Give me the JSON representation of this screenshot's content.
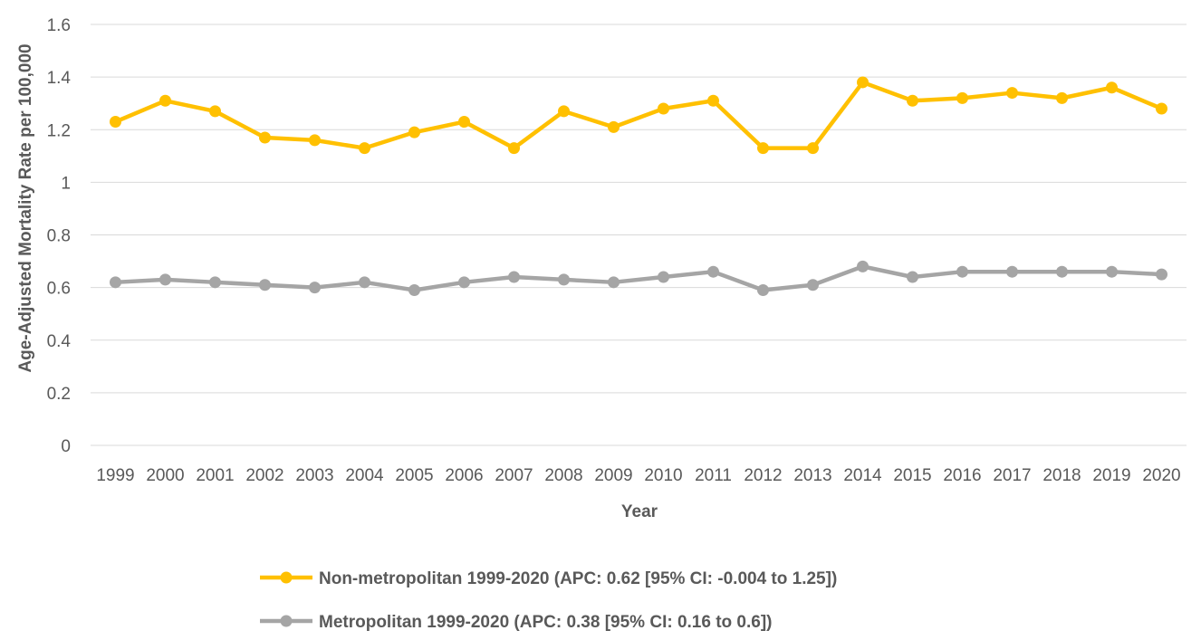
{
  "chart_data": {
    "type": "line",
    "title": "",
    "xlabel": "Year",
    "ylabel": "Age-Adjusted Mortality Rate per 100,000",
    "ylim": [
      0,
      1.6
    ],
    "yticks": [
      "0",
      "0.2",
      "0.4",
      "0.6",
      "0.8",
      "1",
      "1.2",
      "1.4",
      "1.6"
    ],
    "grid": true,
    "legend_position": "bottom",
    "x": [
      "1999",
      "2000",
      "2001",
      "2002",
      "2003",
      "2004",
      "2005",
      "2006",
      "2007",
      "2008",
      "2009",
      "2010",
      "2011",
      "2012",
      "2013",
      "2014",
      "2015",
      "2016",
      "2017",
      "2018",
      "2019",
      "2020"
    ],
    "series": [
      {
        "name": "Non-metropolitan 1999-2020 (APC: 0.62 [95% CI: -0.004 to 1.25])",
        "color": "#ffc000",
        "values": [
          1.23,
          1.31,
          1.27,
          1.17,
          1.16,
          1.13,
          1.19,
          1.23,
          1.13,
          1.27,
          1.21,
          1.28,
          1.31,
          1.13,
          1.13,
          1.38,
          1.31,
          1.32,
          1.34,
          1.32,
          1.36,
          1.28
        ]
      },
      {
        "name": "Metropolitan 1999-2020 (APC: 0.38 [95% CI: 0.16 to 0.6])",
        "color": "#a5a5a5",
        "values": [
          0.62,
          0.63,
          0.62,
          0.61,
          0.6,
          0.62,
          0.59,
          0.62,
          0.64,
          0.63,
          0.62,
          0.64,
          0.66,
          0.59,
          0.61,
          0.68,
          0.64,
          0.66,
          0.66,
          0.66,
          0.66,
          0.65
        ]
      }
    ]
  }
}
